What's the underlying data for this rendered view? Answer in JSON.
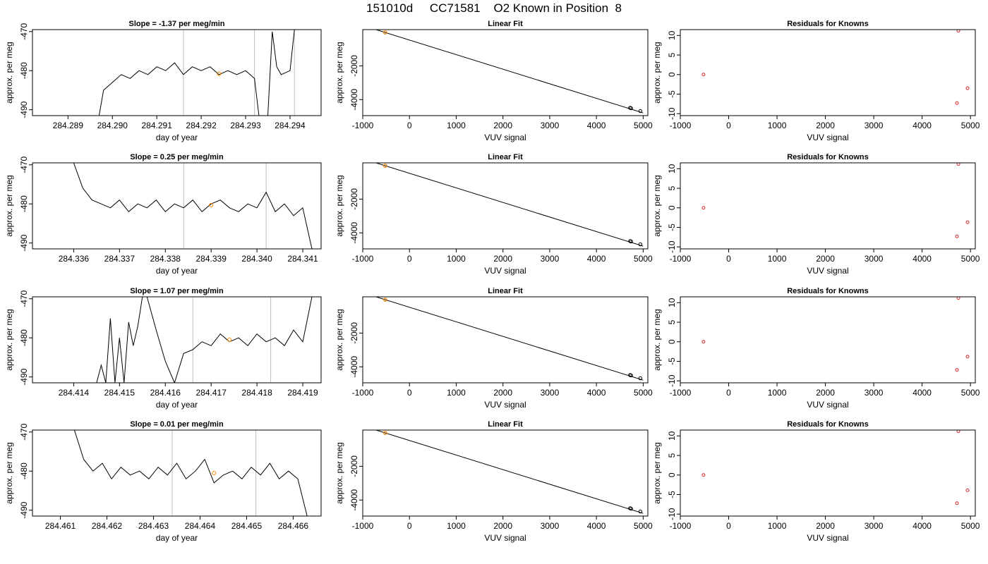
{
  "header": {
    "title": "151010d     CC71581    O2 Known in Position  8"
  },
  "chart_data": [
    {
      "type": "line",
      "title": "Slope =  -1.37  per meg/min",
      "xlabel": "day of year",
      "ylabel": "approx. per meg",
      "xlim": [
        284.2882,
        284.2947
      ],
      "ylim": [
        -491.5,
        -469.5
      ],
      "xticks": [
        "284.289",
        "284.290",
        "284.291",
        "284.292",
        "284.293",
        "284.294"
      ],
      "yticks": [
        "-470",
        "-480",
        "-490"
      ],
      "vlines": [
        284.2916,
        284.2932,
        284.2941
      ],
      "highlight_point": [
        284.2924,
        -480.8
      ],
      "series": [
        {
          "x": [
            284.2897,
            284.2898,
            284.29,
            284.2902,
            284.2904,
            284.2906,
            284.2908,
            284.291,
            284.2912,
            284.2914,
            284.2916,
            284.2918,
            284.292,
            284.2922,
            284.2924,
            284.2926,
            284.2928,
            284.293,
            284.2932,
            284.2933,
            284.2935,
            284.2936,
            284.2937,
            284.2938,
            284.294,
            284.2941
          ],
          "y": [
            -491.5,
            -485,
            -483,
            -481,
            -482,
            -480,
            -481,
            -479,
            -480,
            -478,
            -481,
            -479,
            -480,
            -479,
            -481,
            -480,
            -481,
            -480,
            -482,
            -491.5,
            -491.5,
            -470,
            -479,
            -481,
            -480,
            -469.5
          ]
        }
      ]
    },
    {
      "type": "scatter",
      "title": "Linear Fit",
      "xlabel": "VUV signal",
      "ylabel": "approx. per meg",
      "xlim": [
        -1000,
        5100
      ],
      "ylim": [
        -4950,
        150
      ],
      "xticks": [
        "-1000",
        "0",
        "1000",
        "2000",
        "3000",
        "4000",
        "5000"
      ],
      "yticks": [
        "-2000",
        "-4000"
      ],
      "fit_line": {
        "x": [
          -850,
          5000
        ],
        "y": [
          265,
          -4790
        ]
      },
      "highlight_point": [
        -520,
        -20
      ],
      "series": [
        {
          "x": [
            -520,
            4720,
            4740,
            4940
          ],
          "y": [
            -20,
            -4490,
            -4510,
            -4680
          ]
        }
      ]
    },
    {
      "type": "scatter",
      "title": "Residuals for Knowns",
      "xlabel": "VUV signal",
      "ylabel": "approx. per meg",
      "xlim": [
        -1000,
        5100
      ],
      "ylim": [
        -10.5,
        11.5
      ],
      "xticks": [
        "-1000",
        "0",
        "1000",
        "2000",
        "3000",
        "4000",
        "5000"
      ],
      "yticks": [
        "10",
        "5",
        "0",
        "-5",
        "-10"
      ],
      "series": [
        {
          "x": [
            -520,
            4720,
            4750,
            4940
          ],
          "y": [
            0,
            -7.3,
            11.2,
            -3.5
          ]
        }
      ]
    },
    {
      "type": "line",
      "title": "Slope =  0.25  per meg/min",
      "xlabel": "day of year",
      "ylabel": "approx. per meg",
      "xlim": [
        284.3351,
        284.3414
      ],
      "ylim": [
        -491.5,
        -469.5
      ],
      "xticks": [
        "284.336",
        "284.337",
        "284.338",
        "284.339",
        "284.340",
        "284.341"
      ],
      "yticks": [
        "-470",
        "-480",
        "-490"
      ],
      "vlines": [
        284.3384,
        284.3402
      ],
      "highlight_point": [
        284.339,
        -480.3
      ],
      "series": [
        {
          "x": [
            284.336,
            284.3362,
            284.3364,
            284.3366,
            284.3368,
            284.337,
            284.3372,
            284.3374,
            284.3376,
            284.3378,
            284.338,
            284.3382,
            284.3384,
            284.3386,
            284.3388,
            284.339,
            284.3392,
            284.3394,
            284.3396,
            284.3398,
            284.34,
            284.3402,
            284.3404,
            284.3406,
            284.3408,
            284.341,
            284.3412
          ],
          "y": [
            -469.5,
            -476,
            -479,
            -480,
            -481,
            -479,
            -482,
            -480,
            -481,
            -479,
            -482,
            -480,
            -481,
            -479,
            -482,
            -480,
            -479,
            -481,
            -482,
            -480,
            -481,
            -477,
            -482,
            -480,
            -483,
            -481,
            -491.5
          ]
        }
      ]
    },
    {
      "type": "scatter",
      "title": "Linear Fit",
      "xlabel": "VUV signal",
      "ylabel": "approx. per meg",
      "xlim": [
        -1000,
        5100
      ],
      "ylim": [
        -4950,
        150
      ],
      "xticks": [
        "-1000",
        "0",
        "1000",
        "2000",
        "3000",
        "4000",
        "5000"
      ],
      "yticks": [
        "-2000",
        "-4000"
      ],
      "fit_line": {
        "x": [
          -850,
          5000
        ],
        "y": [
          265,
          -4790
        ]
      },
      "highlight_point": [
        -520,
        -20
      ],
      "series": [
        {
          "x": [
            -520,
            4720,
            4740,
            4940
          ],
          "y": [
            -20,
            -4490,
            -4510,
            -4680
          ]
        }
      ]
    },
    {
      "type": "scatter",
      "title": "Residuals for Knowns",
      "xlabel": "VUV signal",
      "ylabel": "approx. per meg",
      "xlim": [
        -1000,
        5100
      ],
      "ylim": [
        -10.5,
        11.5
      ],
      "xticks": [
        "-1000",
        "0",
        "1000",
        "2000",
        "3000",
        "4000",
        "5000"
      ],
      "yticks": [
        "10",
        "5",
        "0",
        "-5",
        "-10"
      ],
      "series": [
        {
          "x": [
            -520,
            4720,
            4750,
            4940
          ],
          "y": [
            0,
            -7.3,
            11.2,
            -3.7
          ]
        }
      ]
    },
    {
      "type": "line",
      "title": "Slope =  1.07  per meg/min",
      "xlabel": "day of year",
      "ylabel": "approx. per meg",
      "xlim": [
        284.4131,
        284.4194
      ],
      "ylim": [
        -491.5,
        -469.5
      ],
      "xticks": [
        "284.414",
        "284.415",
        "284.416",
        "284.417",
        "284.418",
        "284.419"
      ],
      "yticks": [
        "-470",
        "-480",
        "-490"
      ],
      "vlines": [
        284.4166,
        284.4183
      ],
      "highlight_point": [
        284.4174,
        -480.5
      ],
      "series": [
        {
          "x": [
            284.4145,
            284.4146,
            284.4147,
            284.4148,
            284.4149,
            284.415,
            284.4151,
            284.4152,
            284.4153,
            284.4154,
            284.4155,
            284.4156,
            284.4158,
            284.416,
            284.4162,
            284.4164,
            284.4166,
            284.4168,
            284.417,
            284.4172,
            284.4174,
            284.4176,
            284.4178,
            284.418,
            284.4182,
            284.4184,
            284.4186,
            284.4188,
            284.419,
            284.4192
          ],
          "y": [
            -491.5,
            -487,
            -491.5,
            -475,
            -491.5,
            -480,
            -491.5,
            -476,
            -482,
            -477,
            -469.5,
            -469.5,
            -478,
            -486,
            -491.5,
            -484,
            -483,
            -481,
            -482,
            -479,
            -481,
            -480,
            -482,
            -479,
            -481,
            -480,
            -482,
            -478,
            -481,
            -469.5
          ]
        }
      ]
    },
    {
      "type": "scatter",
      "title": "Linear Fit",
      "xlabel": "VUV signal",
      "ylabel": "approx. per meg",
      "xlim": [
        -1000,
        5100
      ],
      "ylim": [
        -4950,
        150
      ],
      "xticks": [
        "-1000",
        "0",
        "1000",
        "2000",
        "3000",
        "4000",
        "5000"
      ],
      "yticks": [
        "-2000",
        "-4000"
      ],
      "fit_line": {
        "x": [
          -850,
          5000
        ],
        "y": [
          265,
          -4790
        ]
      },
      "highlight_point": [
        -520,
        -20
      ],
      "series": [
        {
          "x": [
            -520,
            4720,
            4740,
            4940
          ],
          "y": [
            -20,
            -4490,
            -4510,
            -4680
          ]
        }
      ]
    },
    {
      "type": "scatter",
      "title": "Residuals for Knowns",
      "xlabel": "VUV signal",
      "ylabel": "approx. per meg",
      "xlim": [
        -1000,
        5100
      ],
      "ylim": [
        -10.5,
        11.5
      ],
      "xticks": [
        "-1000",
        "0",
        "1000",
        "2000",
        "3000",
        "4000",
        "5000"
      ],
      "yticks": [
        "10",
        "5",
        "0",
        "-5",
        "-10"
      ],
      "series": [
        {
          "x": [
            -520,
            4720,
            4750,
            4940
          ],
          "y": [
            0,
            -7.2,
            11.2,
            -3.8
          ]
        }
      ]
    },
    {
      "type": "line",
      "title": "Slope =  0.01  per meg/min",
      "xlabel": "day of year",
      "ylabel": "approx. per meg",
      "xlim": [
        284.4604,
        284.4666
      ],
      "ylim": [
        -491.5,
        -469.5
      ],
      "xticks": [
        "284.461",
        "284.462",
        "284.463",
        "284.464",
        "284.465",
        "284.466"
      ],
      "yticks": [
        "-470",
        "-480",
        "-490"
      ],
      "vlines": [
        284.4634,
        284.4652
      ],
      "highlight_point": [
        284.4643,
        -480.5
      ],
      "series": [
        {
          "x": [
            284.4613,
            284.4615,
            284.4617,
            284.4619,
            284.4621,
            284.4623,
            284.4625,
            284.4627,
            284.4629,
            284.4631,
            284.4633,
            284.4635,
            284.4637,
            284.4639,
            284.4641,
            284.4643,
            284.4645,
            284.4647,
            284.4649,
            284.4651,
            284.4653,
            284.4655,
            284.4657,
            284.4659,
            284.4661,
            284.4663
          ],
          "y": [
            -469.5,
            -477,
            -480,
            -478,
            -482,
            -479,
            -481,
            -480,
            -482,
            -479,
            -481,
            -478,
            -482,
            -480,
            -477,
            -483,
            -481,
            -480,
            -482,
            -479,
            -481,
            -478,
            -482,
            -480,
            -482,
            -491.5
          ]
        }
      ]
    },
    {
      "type": "scatter",
      "title": "Linear Fit",
      "xlabel": "VUV signal",
      "ylabel": "approx. per meg",
      "xlim": [
        -1000,
        5100
      ],
      "ylim": [
        -4950,
        150
      ],
      "xticks": [
        "-1000",
        "0",
        "1000",
        "2000",
        "3000",
        "4000",
        "5000"
      ],
      "yticks": [
        "-2000",
        "-4000"
      ],
      "fit_line": {
        "x": [
          -850,
          5000
        ],
        "y": [
          265,
          -4790
        ]
      },
      "highlight_point": [
        -520,
        -20
      ],
      "series": [
        {
          "x": [
            -520,
            4720,
            4740,
            4940
          ],
          "y": [
            -20,
            -4490,
            -4510,
            -4680
          ]
        }
      ]
    },
    {
      "type": "scatter",
      "title": "Residuals for Knowns",
      "xlabel": "VUV signal",
      "ylabel": "approx. per meg",
      "xlim": [
        -1000,
        5100
      ],
      "ylim": [
        -10.5,
        11.5
      ],
      "xticks": [
        "-1000",
        "0",
        "1000",
        "2000",
        "3000",
        "4000",
        "5000"
      ],
      "yticks": [
        "10",
        "5",
        "0",
        "-5",
        "-10"
      ],
      "series": [
        {
          "x": [
            -520,
            4720,
            4750,
            4940
          ],
          "y": [
            0,
            -7.2,
            11.2,
            -3.9
          ]
        }
      ]
    }
  ],
  "colors": {
    "line": "#000000",
    "vline": "#bebebe",
    "residual_point": "#d62728",
    "highlight_point": "#ff8c00"
  }
}
